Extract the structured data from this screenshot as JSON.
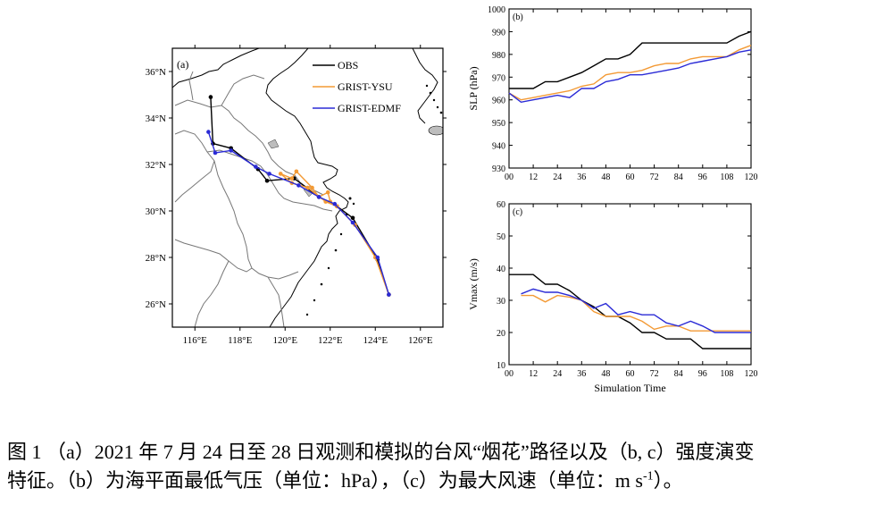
{
  "panel_a": {
    "label": "(a)",
    "lon_ticks": [
      "116°E",
      "118°E",
      "120°E",
      "122°E",
      "124°E",
      "126°E"
    ],
    "lat_ticks": [
      "36°N",
      "34°N",
      "32°N",
      "30°N",
      "28°N",
      "26°N"
    ],
    "legend": [
      {
        "name": "OBS",
        "color": "#000000"
      },
      {
        "name": "GRIST-YSU",
        "color": "#f39a35"
      },
      {
        "name": "GRIST-EDMF",
        "color": "#2b2bd6"
      }
    ]
  },
  "chart_data": [
    {
      "type": "map-track",
      "panel": "a",
      "xlim": [
        115,
        127
      ],
      "ylim": [
        25,
        37
      ],
      "series": [
        {
          "name": "OBS",
          "color": "#000000",
          "lon": [
            124.6,
            124.1,
            123.0,
            122.3,
            121.5,
            120.4,
            119.2,
            118.8,
            117.6,
            116.8,
            116.7
          ],
          "lat": [
            26.4,
            27.9,
            29.7,
            30.2,
            30.6,
            31.4,
            31.3,
            31.8,
            32.7,
            32.9,
            34.9
          ]
        },
        {
          "name": "GRIST-YSU",
          "color": "#f39a35",
          "lon": [
            124.6,
            124.0,
            123.1,
            122.3,
            121.8,
            121.0,
            120.3,
            119.8,
            120.3,
            120.5,
            121.2,
            121.5,
            121.9,
            122.0,
            122.3
          ],
          "lat": [
            26.4,
            28.0,
            29.4,
            30.2,
            30.4,
            31.0,
            31.2,
            31.6,
            31.4,
            31.7,
            31.0,
            30.6,
            30.8,
            30.4,
            30.2
          ]
        },
        {
          "name": "GRIST-EDMF",
          "color": "#2b2bd6",
          "lon": [
            124.6,
            124.1,
            123.0,
            122.2,
            121.5,
            120.6,
            119.3,
            118.7,
            117.6,
            116.9,
            116.6
          ],
          "lat": [
            26.4,
            28.0,
            29.5,
            30.3,
            30.6,
            31.1,
            31.6,
            31.9,
            32.6,
            32.5,
            33.4
          ]
        }
      ]
    },
    {
      "type": "line",
      "panel": "b",
      "label": "(b)",
      "xlabel": "",
      "ylabel": "SLP (hPa)",
      "xlim": [
        0,
        120
      ],
      "ylim": [
        930,
        1000
      ],
      "xticks": [
        0,
        12,
        24,
        36,
        48,
        60,
        72,
        84,
        96,
        108,
        120
      ],
      "yticks": [
        930,
        940,
        950,
        960,
        970,
        980,
        990,
        1000
      ],
      "series": [
        {
          "name": "OBS",
          "color": "#000000",
          "x": [
            0,
            6,
            12,
            18,
            24,
            30,
            36,
            42,
            48,
            54,
            60,
            66,
            72,
            78,
            84,
            90,
            96,
            102,
            108,
            114,
            120
          ],
          "y": [
            965,
            965,
            965,
            968,
            968,
            970,
            972,
            975,
            978,
            978,
            980,
            985,
            985,
            985,
            985,
            985,
            985,
            985,
            985,
            988,
            990
          ]
        },
        {
          "name": "GRIST-YSU",
          "color": "#f39a35",
          "x": [
            0,
            6,
            12,
            18,
            24,
            30,
            36,
            42,
            48,
            54,
            60,
            66,
            72,
            78,
            84,
            90,
            96,
            102,
            108,
            114,
            120
          ],
          "y": [
            963,
            960,
            961,
            962,
            963,
            964,
            966,
            967,
            971,
            972,
            972,
            973,
            975,
            976,
            976,
            978,
            979,
            979,
            979,
            982,
            984
          ]
        },
        {
          "name": "GRIST-EDMF",
          "color": "#2b2bd6",
          "x": [
            0,
            6,
            12,
            18,
            24,
            30,
            36,
            42,
            48,
            54,
            60,
            66,
            72,
            78,
            84,
            90,
            96,
            102,
            108,
            114,
            120
          ],
          "y": [
            963,
            959,
            960,
            961,
            962,
            961,
            965,
            965,
            968,
            969,
            971,
            971,
            972,
            973,
            974,
            976,
            977,
            978,
            979,
            981,
            982
          ]
        }
      ]
    },
    {
      "type": "line",
      "panel": "c",
      "label": "(c)",
      "xlabel": "Simulation Time",
      "ylabel": "Vmax (m/s)",
      "xlim": [
        0,
        120
      ],
      "ylim": [
        10,
        60
      ],
      "xticks": [
        0,
        12,
        24,
        36,
        48,
        60,
        72,
        84,
        96,
        108,
        120
      ],
      "yticks": [
        10,
        20,
        30,
        40,
        50,
        60
      ],
      "series": [
        {
          "name": "OBS",
          "color": "#000000",
          "x": [
            0,
            6,
            12,
            18,
            24,
            30,
            36,
            42,
            48,
            54,
            60,
            66,
            72,
            78,
            84,
            90,
            96,
            102,
            108,
            114,
            120
          ],
          "y": [
            38,
            38,
            38,
            35,
            35,
            33,
            30,
            28,
            25,
            25,
            23,
            20,
            20,
            18,
            18,
            18,
            15,
            15,
            15,
            15,
            15
          ]
        },
        {
          "name": "GRIST-YSU",
          "color": "#f39a35",
          "x": [
            6,
            12,
            18,
            24,
            30,
            36,
            42,
            48,
            54,
            60,
            66,
            72,
            78,
            84,
            90,
            96,
            102,
            108,
            114,
            120
          ],
          "y": [
            31.5,
            31.5,
            29.5,
            31.5,
            31,
            30,
            26.5,
            25,
            25,
            25,
            23.5,
            21,
            22,
            22,
            20.5,
            20.5,
            20.5,
            20.5,
            20.5,
            20.5
          ]
        },
        {
          "name": "GRIST-EDMF",
          "color": "#2b2bd6",
          "x": [
            6,
            12,
            18,
            24,
            30,
            36,
            42,
            48,
            54,
            60,
            66,
            72,
            78,
            84,
            90,
            96,
            102,
            108,
            114,
            120
          ],
          "y": [
            32,
            33.5,
            32.5,
            32.5,
            31.5,
            30,
            27.5,
            29,
            25.5,
            26.5,
            25.5,
            25.5,
            23,
            22,
            23.5,
            22,
            20,
            20,
            20,
            20
          ]
        }
      ]
    }
  ],
  "caption": {
    "line1": "图 1 （a）2021 年 7 月 24 日至 28 日观测和模拟的台风“烟花”路径以及（b, c）强度演变",
    "line2a": "特征。（b）为海平面最低气压（单位：hPa），（c）为最大风速（单位：m s",
    "line2sup": "-1",
    "line2b": "）。"
  }
}
